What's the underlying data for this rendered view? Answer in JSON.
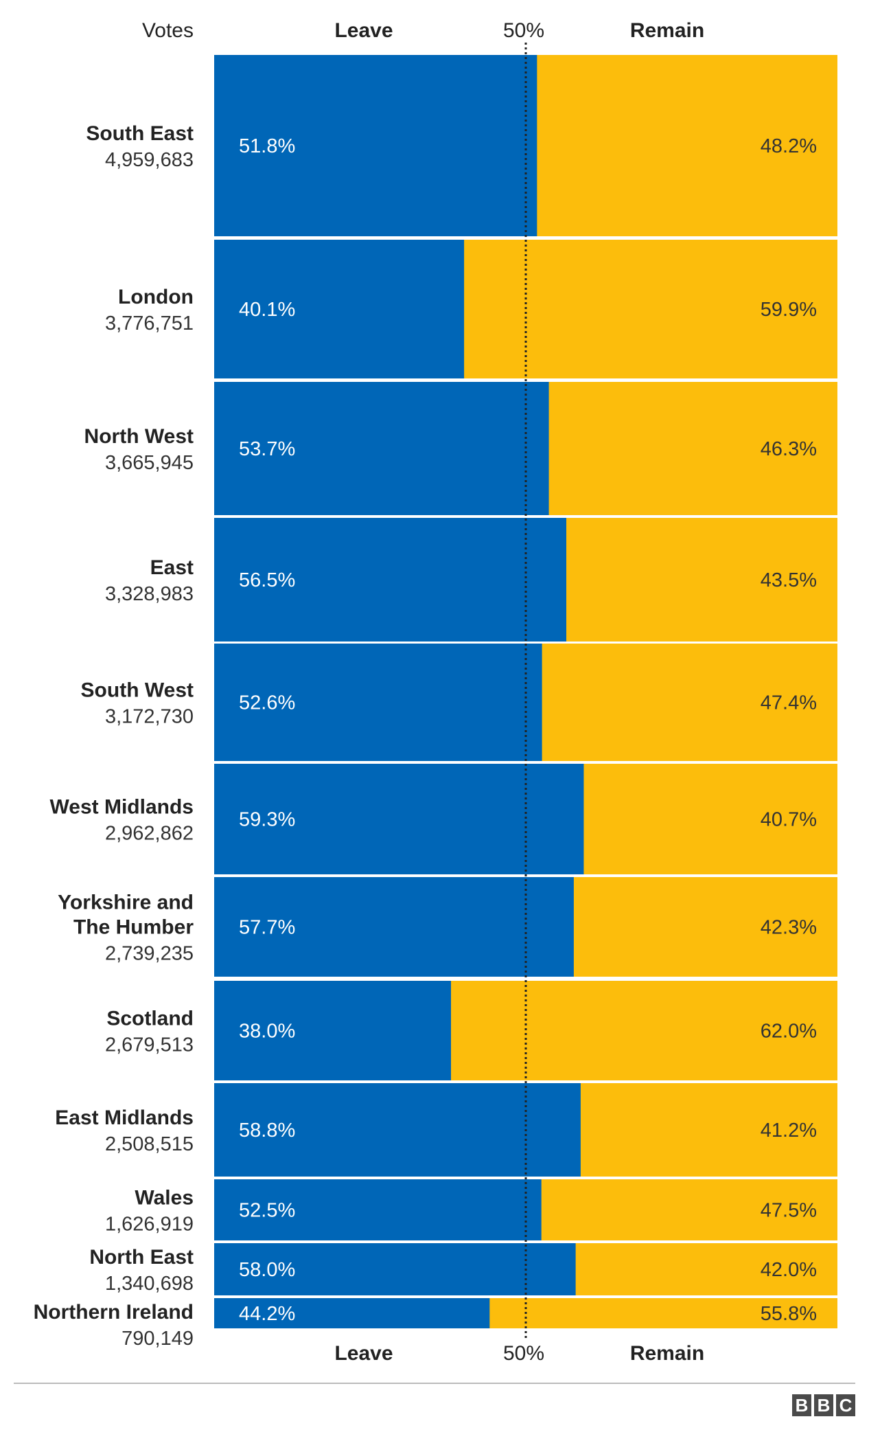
{
  "colors": {
    "leave": "#0066b7",
    "remain": "#fcbd0c",
    "midline": "#222222",
    "rule": "#bbbbbb"
  },
  "header": {
    "votes_label": "Votes",
    "leave_label": "Leave",
    "midpoint_label": "50%",
    "remain_label": "Remain"
  },
  "footer": {
    "leave_label": "Leave",
    "midpoint_label": "50%",
    "remain_label": "Remain"
  },
  "logo": {
    "letters": [
      "B",
      "B",
      "C"
    ]
  },
  "chart_data": {
    "type": "bar",
    "orientation": "horizontal",
    "stacked": true,
    "unit": "%",
    "xlim": [
      0,
      100
    ],
    "midpoint": 50,
    "categories": [
      "South East",
      "London",
      "North West",
      "East",
      "South West",
      "West Midlands",
      "Yorkshire and The Humber",
      "Scotland",
      "East Midlands",
      "Wales",
      "North East",
      "Northern Ireland"
    ],
    "votes": [
      "4,959,683",
      "3,776,751",
      "3,665,945",
      "3,328,983",
      "3,172,730",
      "2,962,862",
      "2,739,235",
      "2,679,513",
      "2,508,515",
      "1,626,919",
      "1,340,698",
      "790,149"
    ],
    "series": [
      {
        "name": "Leave",
        "values": [
          51.8,
          40.1,
          53.7,
          56.5,
          52.6,
          59.3,
          57.7,
          38.0,
          58.8,
          52.5,
          58.0,
          44.2
        ]
      },
      {
        "name": "Remain",
        "values": [
          48.2,
          59.9,
          46.3,
          43.5,
          47.4,
          40.7,
          42.3,
          62.0,
          41.2,
          47.5,
          42.0,
          55.8
        ]
      }
    ],
    "grid": false,
    "legend": "top and bottom column headers"
  }
}
